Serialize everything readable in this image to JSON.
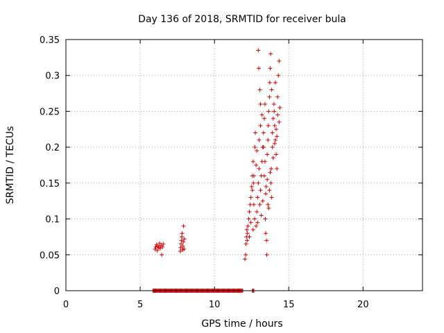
{
  "chart_data": {
    "type": "scatter",
    "title": "Day 136 of 2018, SRMTID for receiver bula",
    "xlabel": "GPS time / hours",
    "ylabel": "SRMTID / TECUs",
    "xlim": [
      0,
      24
    ],
    "ylim": [
      0,
      0.35
    ],
    "xticks": [
      0,
      5,
      10,
      15,
      20
    ],
    "yticks": [
      0,
      0.05,
      0.1,
      0.15,
      0.2,
      0.25,
      0.3,
      0.35
    ],
    "xtick_labels": [
      "0",
      "5",
      "10",
      "15",
      "20"
    ],
    "ytick_labels": [
      "0",
      "0.05",
      "0.1",
      "0.15",
      "0.2",
      "0.25",
      "0.3",
      "0.35"
    ],
    "grid": true,
    "marker": "+",
    "color": "#cc0000",
    "series": [
      {
        "name": "SRMTID",
        "points": [
          [
            6.0,
            0.058
          ],
          [
            6.05,
            0.061
          ],
          [
            6.1,
            0.064
          ],
          [
            6.15,
            0.056
          ],
          [
            6.2,
            0.062
          ],
          [
            6.25,
            0.06
          ],
          [
            6.3,
            0.066
          ],
          [
            6.35,
            0.059
          ],
          [
            6.4,
            0.063
          ],
          [
            6.45,
            0.05
          ],
          [
            6.5,
            0.061
          ],
          [
            6.55,
            0.065
          ],
          [
            7.7,
            0.055
          ],
          [
            7.72,
            0.06
          ],
          [
            7.75,
            0.065
          ],
          [
            7.78,
            0.07
          ],
          [
            7.8,
            0.075
          ],
          [
            7.82,
            0.08
          ],
          [
            7.85,
            0.057
          ],
          [
            7.88,
            0.062
          ],
          [
            7.9,
            0.068
          ],
          [
            7.92,
            0.09
          ],
          [
            7.95,
            0.058
          ],
          [
            7.97,
            0.072
          ],
          [
            12.05,
            0.044
          ],
          [
            12.1,
            0.05
          ],
          [
            12.12,
            0.065
          ],
          [
            12.15,
            0.075
          ],
          [
            12.18,
            0.085
          ],
          [
            12.2,
            0.07
          ],
          [
            12.22,
            0.08
          ],
          [
            12.25,
            0.09
          ],
          [
            12.3,
            0.1
          ],
          [
            12.35,
            0.11
          ],
          [
            12.4,
            0.12
          ],
          [
            12.45,
            0.13
          ],
          [
            12.5,
            0.145
          ],
          [
            12.55,
            0.16
          ],
          [
            12.6,
            0.18
          ],
          [
            12.62,
            0.15
          ],
          [
            12.65,
            0.12
          ],
          [
            12.7,
            0.1
          ],
          [
            12.72,
            0.2
          ],
          [
            12.75,
            0.22
          ],
          [
            12.8,
            0.09
          ],
          [
            12.85,
            0.11
          ],
          [
            12.9,
            0.13
          ],
          [
            12.95,
            0.15
          ],
          [
            13.0,
            0.17
          ],
          [
            13.05,
            0.12
          ],
          [
            13.1,
            0.14
          ],
          [
            13.15,
            0.16
          ],
          [
            13.2,
            0.18
          ],
          [
            13.25,
            0.2
          ],
          [
            13.3,
            0.22
          ],
          [
            13.35,
            0.24
          ],
          [
            13.4,
            0.26
          ],
          [
            13.42,
            0.1
          ],
          [
            13.45,
            0.08
          ],
          [
            13.5,
            0.07
          ],
          [
            13.52,
            0.05
          ],
          [
            13.55,
            0.19
          ],
          [
            13.6,
            0.21
          ],
          [
            13.62,
            0.23
          ],
          [
            13.65,
            0.25
          ],
          [
            13.7,
            0.27
          ],
          [
            13.72,
            0.29
          ],
          [
            13.75,
            0.31
          ],
          [
            13.78,
            0.33
          ],
          [
            13.8,
            0.15
          ],
          [
            13.82,
            0.17
          ],
          [
            13.85,
            0.13
          ],
          [
            13.9,
            0.22
          ],
          [
            13.95,
            0.24
          ],
          [
            14.0,
            0.26
          ],
          [
            14.02,
            0.25
          ],
          [
            14.05,
            0.23
          ],
          [
            14.1,
            0.21
          ],
          [
            14.15,
            0.19
          ],
          [
            14.2,
            0.17
          ],
          [
            14.25,
            0.27
          ],
          [
            14.3,
            0.3
          ],
          [
            14.35,
            0.32
          ],
          [
            14.4,
            0.255
          ],
          [
            12.95,
            0.335
          ],
          [
            12.98,
            0.31
          ],
          [
            13.05,
            0.28
          ],
          [
            13.1,
            0.26
          ],
          [
            13.3,
            0.2
          ],
          [
            13.4,
            0.18
          ],
          [
            13.6,
            0.12
          ],
          [
            13.7,
            0.14
          ],
          [
            13.85,
            0.28
          ],
          [
            14.1,
            0.29
          ],
          [
            12.6,
            0.085
          ],
          [
            12.9,
            0.095
          ],
          [
            12.35,
            0.075
          ],
          [
            12.45,
            0.095
          ],
          [
            13.15,
            0.105
          ],
          [
            13.25,
            0.125
          ],
          [
            13.45,
            0.135
          ],
          [
            13.55,
            0.155
          ],
          [
            13.75,
            0.165
          ],
          [
            13.95,
            0.185
          ],
          [
            14.05,
            0.205
          ],
          [
            14.15,
            0.225
          ],
          [
            14.25,
            0.245
          ],
          [
            14.35,
            0.235
          ],
          [
            12.55,
            0.14
          ],
          [
            12.65,
            0.16
          ],
          [
            12.8,
            0.175
          ],
          [
            12.85,
            0.195
          ],
          [
            13.0,
            0.21
          ],
          [
            13.1,
            0.23
          ],
          [
            13.2,
            0.245
          ],
          [
            13.35,
            0.16
          ],
          [
            13.48,
            0.145
          ],
          [
            13.65,
            0.115
          ],
          [
            13.9,
            0.2
          ],
          [
            14.2,
            0.215
          ]
        ]
      }
    ],
    "zero_markers": {
      "y": 0,
      "x_start": 5.85,
      "x_end": 11.9,
      "step": 0.05,
      "extra_x": [
        12.55,
        12.6,
        12.65
      ]
    }
  }
}
